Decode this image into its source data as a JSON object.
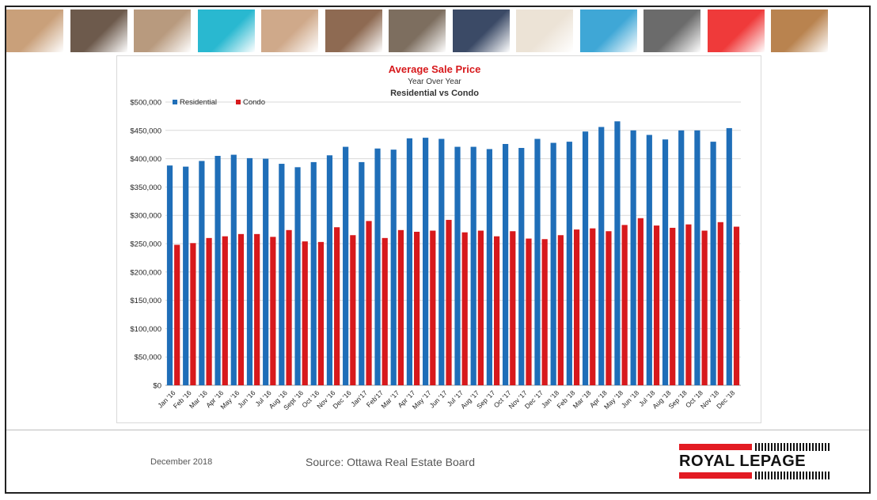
{
  "photo_tiles": [
    {
      "name": "family-photo",
      "color": "#c9a07a"
    },
    {
      "name": "phone-photo",
      "color": "#6d5a4c"
    },
    {
      "name": "couple-photo",
      "color": "#b89a7e"
    },
    {
      "name": "teal-block",
      "color": "#29b8d0"
    },
    {
      "name": "woman-phone-photo",
      "color": "#cfa98a"
    },
    {
      "name": "couple2-photo",
      "color": "#8e6a52"
    },
    {
      "name": "house-photo",
      "color": "#7d6e5f"
    },
    {
      "name": "hand-photo",
      "color": "#3b4a66"
    },
    {
      "name": "beige-block",
      "color": "#ece3d6"
    },
    {
      "name": "pool-photo",
      "color": "#3fa7d6"
    },
    {
      "name": "meeting-photo",
      "color": "#6b6b6b"
    },
    {
      "name": "red-block",
      "color": "#ef3a3a"
    },
    {
      "name": "father-child-photo",
      "color": "#b9834f"
    }
  ],
  "chart_data": {
    "type": "bar",
    "title": "Average Sale Price",
    "subtitle": "Year Over Year",
    "subtitle2": "Residential vs Condo",
    "xlabel": "",
    "ylabel": "",
    "ylim": [
      0,
      500000
    ],
    "yticks": [
      0,
      50000,
      100000,
      150000,
      200000,
      250000,
      300000,
      350000,
      400000,
      450000,
      500000
    ],
    "ytick_labels": [
      "$0",
      "$50,000",
      "$100,000",
      "$150,000",
      "$200,000",
      "$250,000",
      "$300,000",
      "$350,000",
      "$400,000",
      "$450,000",
      "$500,000"
    ],
    "grid": true,
    "legend_position": "top-left",
    "categories": [
      "Jan '16",
      "Feb '16",
      "Mar '16",
      "Apr '16",
      "May '16",
      "Jun '16",
      "Jul '16",
      "Aug '16",
      "Sept '16",
      "Oct '16",
      "Nov '16",
      "Dec '16",
      "Jan'17",
      "Feb'17",
      "Mar '17",
      "Apr '17",
      "May '17",
      "Jun '17",
      "Jul '17",
      "Aug '17",
      "Sep '17",
      "Oct '17",
      "Nov '17",
      "Dec '17",
      "Jan '18",
      "Feb '18",
      "Mar '18",
      "Apr '18",
      "May '18",
      "Jun '18",
      "Jul '18",
      "Aug '18",
      "Sep '18",
      "Oct '18",
      "Nov '18",
      "Dec '18"
    ],
    "series": [
      {
        "name": "Residential",
        "color": "#1f6eb8",
        "values": [
          388000,
          386000,
          396000,
          405000,
          407000,
          401000,
          400000,
          391000,
          385000,
          394000,
          406000,
          421000,
          394000,
          418000,
          416000,
          436000,
          437000,
          435000,
          421000,
          421000,
          417000,
          426000,
          419000,
          435000,
          428000,
          430000,
          448000,
          456000,
          466000,
          450000,
          442000,
          434000,
          450000,
          450000,
          430000,
          454000
        ]
      },
      {
        "name": "Condo",
        "color": "#d7191c",
        "values": [
          248000,
          251000,
          260000,
          263000,
          267000,
          267000,
          262000,
          274000,
          254000,
          253000,
          279000,
          265000,
          290000,
          260000,
          274000,
          271000,
          273000,
          292000,
          270000,
          273000,
          263000,
          272000,
          259000,
          258000,
          265000,
          275000,
          277000,
          272000,
          283000,
          295000,
          282000,
          278000,
          284000,
          273000,
          288000,
          280000
        ]
      }
    ]
  },
  "footer": {
    "date": "December 2018",
    "source": "Source: Ottawa Real Estate Board",
    "logo_text": "ROYAL LEPAGE"
  }
}
